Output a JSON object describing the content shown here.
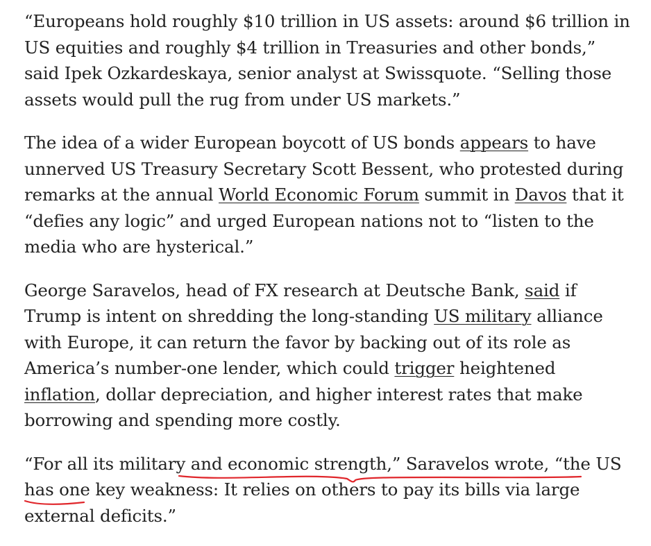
{
  "paragraphs": [
    {
      "segments": [
        {
          "text": "“Europeans hold roughly $10 trillion in US assets: around $6 trillion in US equities and roughly $4 trillion in Treasuries and other bonds,” said Ipek Ozkardeskaya, senior analyst at Swissquote. “Selling those assets would pull the rug from under US markets.”"
        }
      ]
    },
    {
      "segments": [
        {
          "text": "The idea of a wider European boycott of US bonds "
        },
        {
          "text": "appears",
          "link": true
        },
        {
          "text": " to have unnerved US Treasury Secretary Scott Bessent, who protested during remarks at the annual "
        },
        {
          "text": "World Economic Forum",
          "link": true
        },
        {
          "text": " summit in "
        },
        {
          "text": "Davos",
          "link": true
        },
        {
          "text": " that it “defies any logic” and urged European nations not to “listen to the media who are hysterical.”"
        }
      ]
    },
    {
      "segments": [
        {
          "text": "George Saravelos, head of FX research at Deutsche Bank, "
        },
        {
          "text": "said",
          "link": true
        },
        {
          "text": " if Trump is intent on shredding the long-standing "
        },
        {
          "text": "US military",
          "link": true
        },
        {
          "text": " alliance with Europe, it can return the favor by backing out of its role as America’s number-one lender, which could "
        },
        {
          "text": "trigger",
          "link": true
        },
        {
          "text": " heightened "
        },
        {
          "text": "inflation",
          "link": true
        },
        {
          "text": ", dollar depreciation, and higher interest rates that make borrowing and spending more costly."
        }
      ]
    },
    {
      "segments": [
        {
          "text": "“For all its military and economic strength,” Saravelos wrote, “the US has one key weakness: It relies on others to pay its bills via large external deficits.”"
        }
      ]
    }
  ],
  "annotation": {
    "color": "#e0262b"
  }
}
